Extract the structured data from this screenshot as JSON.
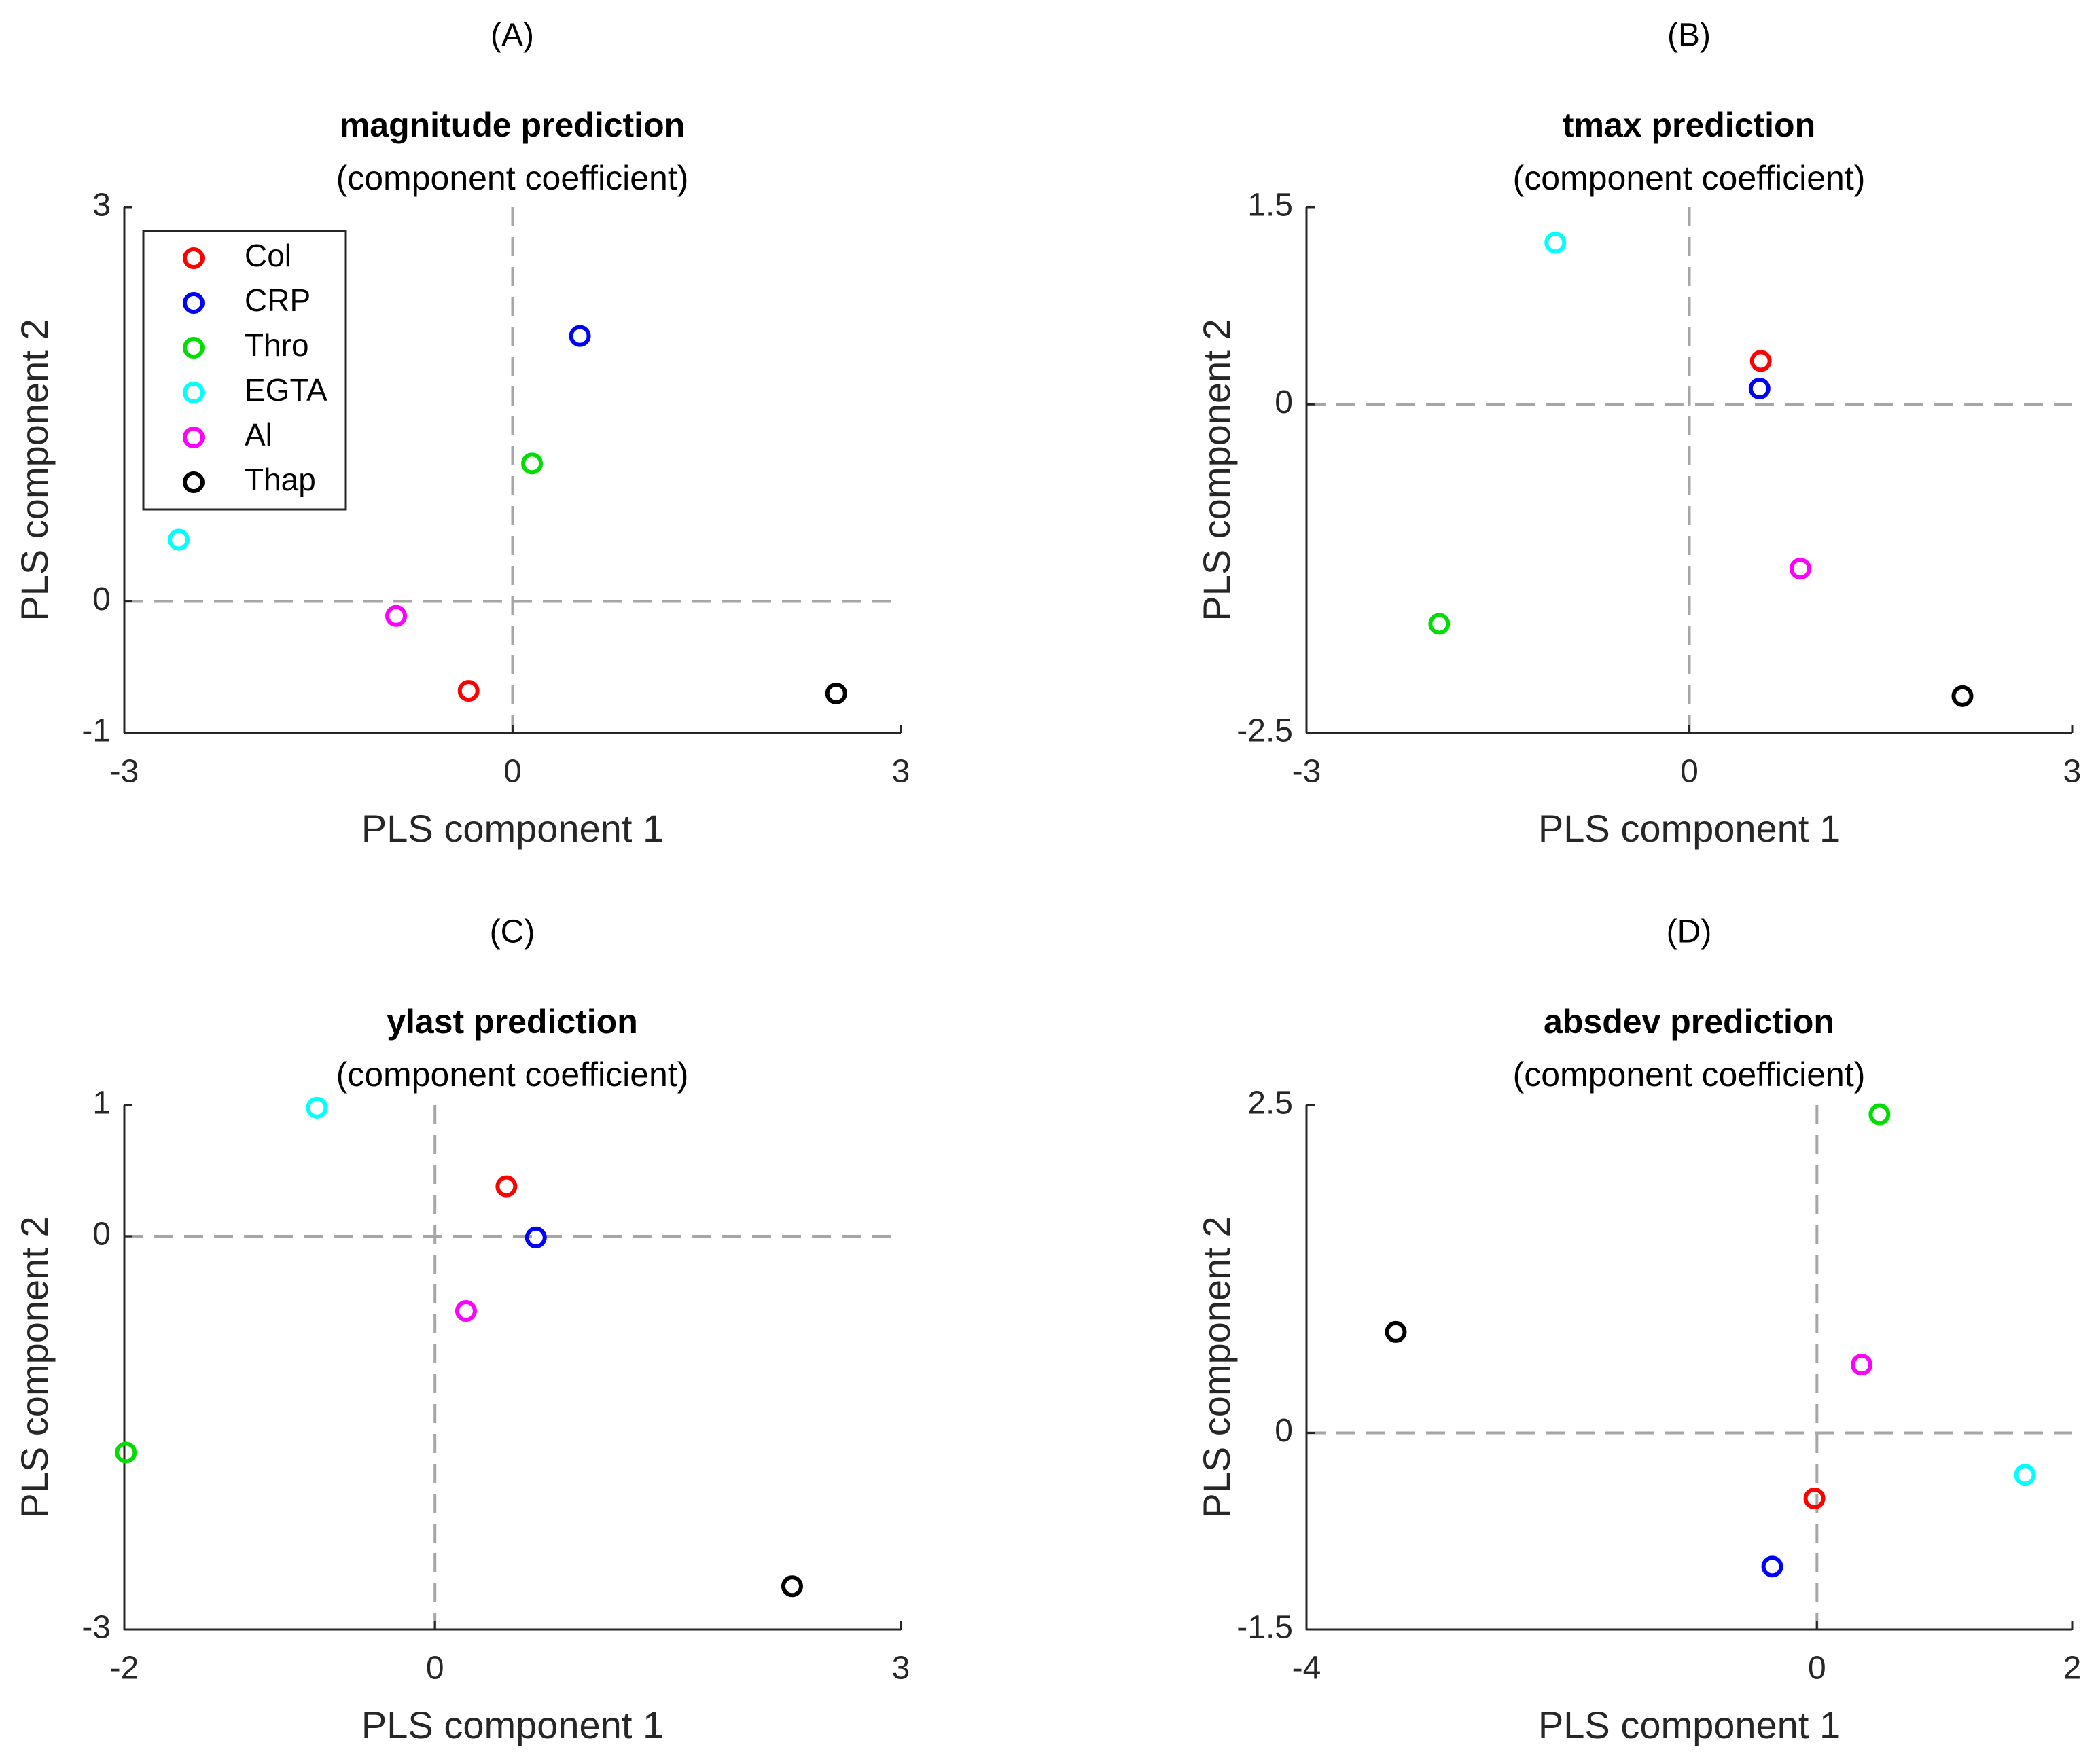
{
  "legend": {
    "entries": [
      {
        "name": "Col",
        "color": "#ff0000"
      },
      {
        "name": "CRP",
        "color": "#0000ff"
      },
      {
        "name": "Thro",
        "color": "#00dd00"
      },
      {
        "name": "EGTA",
        "color": "#00ffff"
      },
      {
        "name": "Al",
        "color": "#ff00ff"
      },
      {
        "name": "Thap",
        "color": "#000000"
      }
    ]
  },
  "chart_data": [
    {
      "type": "scatter",
      "panel": "(A)",
      "title": "magnitude prediction",
      "subtitle": "(component coefficient)",
      "xlabel": "PLS component 1",
      "ylabel": "PLS component 2",
      "xlim": [
        -3,
        3
      ],
      "ylim": [
        -1,
        3
      ],
      "xticks": [
        "-3",
        "0",
        "3"
      ],
      "yticks": [
        "-1",
        "0",
        "3"
      ],
      "xtick_values": [
        -3,
        0,
        3
      ],
      "ytick_values": [
        -1,
        0,
        3
      ],
      "series": [
        {
          "name": "Col",
          "x": -0.34,
          "y": -0.68
        },
        {
          "name": "CRP",
          "x": 0.52,
          "y": 2.02
        },
        {
          "name": "Thro",
          "x": 0.15,
          "y": 1.05
        },
        {
          "name": "EGTA",
          "x": -2.58,
          "y": 0.47
        },
        {
          "name": "Al",
          "x": -0.9,
          "y": -0.11
        },
        {
          "name": "Thap",
          "x": 2.5,
          "y": -0.7
        }
      ]
    },
    {
      "type": "scatter",
      "panel": "(B)",
      "title": "tmax prediction",
      "subtitle": "(component coefficient)",
      "xlabel": "PLS component 1",
      "ylabel": "PLS component 2",
      "xlim": [
        -3,
        3
      ],
      "ylim": [
        -2.5,
        1.5
      ],
      "xticks": [
        "-3",
        "0",
        "3"
      ],
      "yticks": [
        "-2.5",
        "0",
        "1.5"
      ],
      "xtick_values": [
        -3,
        0,
        3
      ],
      "ytick_values": [
        -2.5,
        0,
        1.5
      ],
      "series": [
        {
          "name": "Col",
          "x": 0.56,
          "y": 0.33
        },
        {
          "name": "CRP",
          "x": 0.55,
          "y": 0.12
        },
        {
          "name": "Thro",
          "x": -1.96,
          "y": -1.67
        },
        {
          "name": "EGTA",
          "x": -1.05,
          "y": 1.23
        },
        {
          "name": "Al",
          "x": 0.87,
          "y": -1.25
        },
        {
          "name": "Thap",
          "x": 2.14,
          "y": -2.22
        }
      ]
    },
    {
      "type": "scatter",
      "panel": "(C)",
      "title": "ylast prediction",
      "subtitle": "(component coefficient)",
      "xlabel": "PLS component 1",
      "ylabel": "PLS component 2",
      "xlim": [
        -2,
        3
      ],
      "ylim": [
        -3,
        1
      ],
      "xticks": [
        "-2",
        "0",
        "3"
      ],
      "yticks": [
        "-3",
        "0",
        "1"
      ],
      "xtick_values": [
        -2,
        0,
        3
      ],
      "ytick_values": [
        -3,
        0,
        1
      ],
      "series": [
        {
          "name": "Col",
          "x": 0.46,
          "y": 0.38
        },
        {
          "name": "CRP",
          "x": 0.65,
          "y": -0.01
        },
        {
          "name": "Thro",
          "x": -1.99,
          "y": -1.65
        },
        {
          "name": "EGTA",
          "x": -0.76,
          "y": 0.98
        },
        {
          "name": "Al",
          "x": 0.2,
          "y": -0.57
        },
        {
          "name": "Thap",
          "x": 2.3,
          "y": -2.67
        }
      ]
    },
    {
      "type": "scatter",
      "panel": "(D)",
      "title": "absdev prediction",
      "subtitle": "(component coefficient)",
      "xlabel": "PLS component 1",
      "ylabel": "PLS component 2",
      "xlim": [
        -4,
        2
      ],
      "ylim": [
        -1.5,
        2.5
      ],
      "xticks": [
        "-4",
        "0",
        "2"
      ],
      "yticks": [
        "-1.5",
        "0",
        "2.5"
      ],
      "xtick_values": [
        -4,
        0,
        2
      ],
      "ytick_values": [
        -1.5,
        0,
        2.5
      ],
      "series": [
        {
          "name": "Col",
          "x": -0.02,
          "y": -0.5
        },
        {
          "name": "CRP",
          "x": -0.35,
          "y": -1.02
        },
        {
          "name": "Thro",
          "x": 0.49,
          "y": 2.43
        },
        {
          "name": "EGTA",
          "x": 1.63,
          "y": -0.32
        },
        {
          "name": "Al",
          "x": 0.35,
          "y": 0.52
        },
        {
          "name": "Thap",
          "x": -3.3,
          "y": 0.77
        }
      ]
    }
  ]
}
